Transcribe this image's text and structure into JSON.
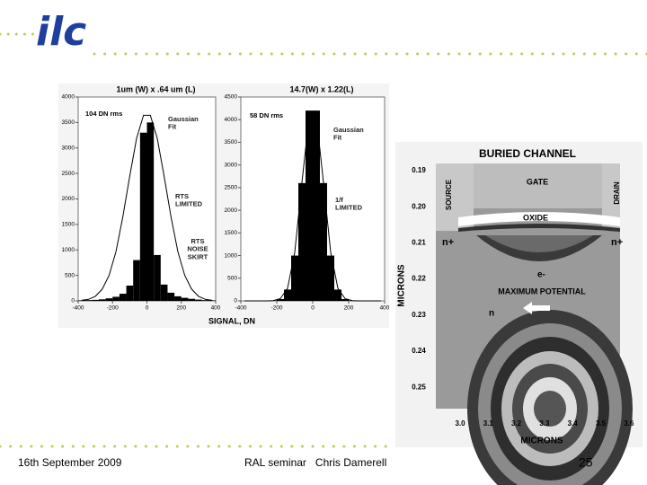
{
  "header": {
    "logo": "ilc"
  },
  "chart_data": [
    {
      "type": "histogram",
      "title": "1um (W) x .64 um (L)",
      "xlabel": "SIGNAL, DN",
      "bins": [
        -400,
        -360,
        -320,
        -280,
        -240,
        -200,
        -160,
        -120,
        -80,
        -40,
        0,
        40,
        80,
        120,
        160,
        200,
        240,
        280,
        320,
        360,
        400
      ],
      "values": [
        10,
        15,
        20,
        30,
        50,
        80,
        140,
        300,
        800,
        3300,
        3500,
        900,
        320,
        160,
        90,
        60,
        40,
        25,
        15,
        10
      ],
      "fit": {
        "x": [
          -380,
          -340,
          -300,
          -260,
          -220,
          -180,
          -140,
          -100,
          -60,
          -20,
          20,
          60,
          100,
          140,
          180,
          220,
          260,
          300,
          340,
          380
        ],
        "values": [
          10,
          30,
          90,
          230,
          500,
          970,
          1650,
          2450,
          3190,
          3640,
          3640,
          3190,
          2450,
          1650,
          970,
          500,
          230,
          90,
          30,
          10
        ]
      },
      "color": "#000000",
      "xlim": [
        -400,
        400
      ],
      "xticks": [
        -400,
        -200,
        0,
        200,
        400
      ],
      "ylim": [
        0,
        4000
      ],
      "yticks": [
        0,
        500,
        1000,
        1500,
        2000,
        2500,
        3000,
        3500,
        4000
      ],
      "annotations": [
        "104 DN rms",
        "Gaussian Fit",
        "RTS LIMITED",
        "RTS NOISE SKIRT"
      ]
    },
    {
      "type": "histogram",
      "title": "14.7(W) x 1.22(L)",
      "bins": [
        -400,
        -360,
        -320,
        -280,
        -240,
        -200,
        -160,
        -120,
        -80,
        -40,
        0,
        40,
        80,
        120,
        160,
        200,
        240,
        280,
        320,
        360,
        400
      ],
      "values": [
        0,
        0,
        0,
        0,
        5,
        40,
        250,
        1000,
        2600,
        4200,
        4200,
        2600,
        1000,
        250,
        40,
        5,
        0,
        0,
        0,
        0
      ],
      "fit": {
        "x": [
          -380,
          -340,
          -300,
          -260,
          -220,
          -180,
          -140,
          -100,
          -60,
          -20,
          20,
          60,
          100,
          140,
          180,
          220,
          260,
          300,
          340,
          380
        ],
        "values": [
          0,
          0,
          0,
          0,
          5,
          50,
          280,
          1070,
          2610,
          4070,
          4070,
          2610,
          1070,
          280,
          50,
          5,
          0,
          0,
          0,
          0
        ]
      },
      "color": "#000000",
      "xlim": [
        -400,
        400
      ],
      "xticks": [
        -400,
        -200,
        0,
        200,
        400
      ],
      "ylim": [
        0,
        4500
      ],
      "yticks": [
        0,
        500,
        1000,
        1500,
        2000,
        2500,
        3000,
        3500,
        4000,
        4500
      ],
      "annotations": [
        "58 DN rms",
        "Gaussian Fit",
        "1/f LIMITED"
      ]
    }
  ],
  "figure": {
    "title": "BURIED CHANNEL",
    "gate": "GATE",
    "oxide": "OXIDE",
    "source": "SOURCE",
    "drain": "DRAIN",
    "n_plus_left": "n+",
    "n_plus_right": "n+",
    "electron": "e-",
    "max_potential": "MAXIMUM POTENTIAL",
    "n": "n",
    "ylabel": "MICRONS",
    "yticks": [
      "0.19",
      "0.20",
      "0.21",
      "0.22",
      "0.23",
      "0.24",
      "0.25"
    ],
    "xlabel": "MICRONS",
    "xticks": [
      "3.0",
      "3.1",
      "3.2",
      "3.3",
      "3.4",
      "3.5",
      "3.6"
    ]
  },
  "footer": {
    "date": "16th September 2009",
    "event": "RAL seminar   Chris Damerell",
    "page": "25"
  }
}
